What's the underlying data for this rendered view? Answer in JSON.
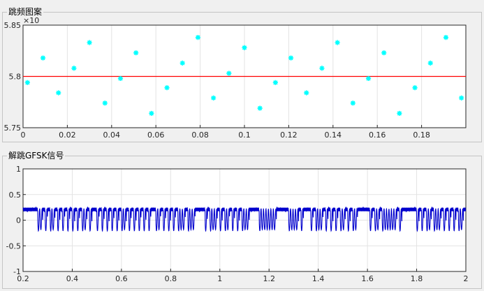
{
  "panels": [
    {
      "title": "跳频图案"
    },
    {
      "title": "解跳GFSK信号"
    }
  ],
  "chart_data": [
    {
      "type": "scatter",
      "exponent_label": "×10",
      "xlim": [
        0,
        0.2
      ],
      "ylim": [
        5.75,
        5.85
      ],
      "xticks": [
        "0",
        "0.02",
        "0.04",
        "0.06",
        "0.08",
        "0.1",
        "0.12",
        "0.14",
        "0.16",
        "0.18"
      ],
      "xtick_values": [
        0,
        0.02,
        0.04,
        0.06,
        0.08,
        0.1,
        0.12,
        0.14,
        0.16,
        0.18
      ],
      "yticks": [
        "5.75",
        "5.8",
        "5.85"
      ],
      "ytick_values": [
        5.75,
        5.8,
        5.85
      ],
      "grid": true,
      "marker_color": "#00ffff",
      "reference_line": {
        "y": 5.8,
        "color": "#ff0000"
      },
      "x": [
        0.002,
        0.009,
        0.016,
        0.023,
        0.03,
        0.037,
        0.044,
        0.051,
        0.058,
        0.065,
        0.072,
        0.079,
        0.086,
        0.093,
        0.1,
        0.107,
        0.114,
        0.121,
        0.128,
        0.135,
        0.142,
        0.149,
        0.156,
        0.163,
        0.17,
        0.177,
        0.184,
        0.191,
        0.198
      ],
      "y": [
        5.794,
        5.818,
        5.784,
        5.808,
        5.833,
        5.774,
        5.798,
        5.823,
        5.764,
        5.789,
        5.813,
        5.838,
        5.779,
        5.803,
        5.828,
        5.769,
        5.794,
        5.818,
        5.784,
        5.808,
        5.833,
        5.774,
        5.798,
        5.823,
        5.764,
        5.789,
        5.813,
        5.838,
        5.779
      ]
    },
    {
      "type": "line",
      "xlim": [
        0.2,
        2
      ],
      "ylim": [
        -1,
        1
      ],
      "xticks": [
        "0.2",
        "0.4",
        "0.6",
        "0.8",
        "1",
        "1.2",
        "1.4",
        "1.6",
        "1.8",
        "2"
      ],
      "xtick_values": [
        0.2,
        0.4,
        0.6,
        0.8,
        1,
        1.2,
        1.4,
        1.6,
        1.8,
        2
      ],
      "yticks": [
        "-1",
        "-0.5",
        "0",
        "0.5",
        "1"
      ],
      "ytick_values": [
        -1,
        -0.5,
        0,
        0.5,
        1
      ],
      "grid": true,
      "line_color": "#0000cd",
      "bits": [
        1,
        1,
        1,
        1,
        1,
        1,
        0,
        0,
        1,
        0,
        1,
        0,
        0,
        1,
        0,
        1,
        0,
        1,
        0,
        1,
        0,
        1,
        0,
        1,
        0,
        0,
        1,
        0,
        1,
        1,
        0,
        1,
        0,
        1,
        0,
        1,
        0,
        1,
        0,
        1,
        0,
        0,
        1,
        0,
        1,
        0,
        1,
        0,
        1,
        0,
        1,
        0,
        1,
        1,
        0,
        0,
        1,
        0,
        1,
        0,
        1,
        0,
        1,
        0,
        0,
        0,
        1,
        0,
        0,
        0,
        1,
        1,
        1,
        1,
        0,
        1,
        0,
        0,
        0,
        1,
        0,
        1,
        0,
        0,
        1,
        0,
        1,
        0,
        1,
        0,
        0,
        0,
        1,
        1,
        1,
        1,
        0,
        0,
        0,
        0,
        0,
        0,
        0,
        1,
        1,
        1,
        1,
        1,
        0,
        0,
        0,
        0,
        1,
        0,
        1,
        1,
        1,
        0,
        1,
        0,
        0,
        0,
        1,
        0,
        1,
        0,
        1,
        0,
        1,
        0,
        0,
        1,
        0,
        1,
        0,
        0,
        1,
        1,
        1,
        1,
        1,
        0,
        1,
        0,
        0,
        1,
        0,
        0,
        0,
        0,
        0,
        0,
        1,
        0,
        1,
        1,
        1,
        1,
        1,
        1,
        0,
        1,
        0,
        1,
        0,
        0,
        1,
        0,
        0,
        0,
        1,
        0,
        1,
        0,
        1,
        0,
        1,
        0,
        0,
        1,
        1,
        0,
        0,
        1,
        0
      ],
      "bit_duration": 0.01,
      "amplitude": 0.22
    }
  ]
}
